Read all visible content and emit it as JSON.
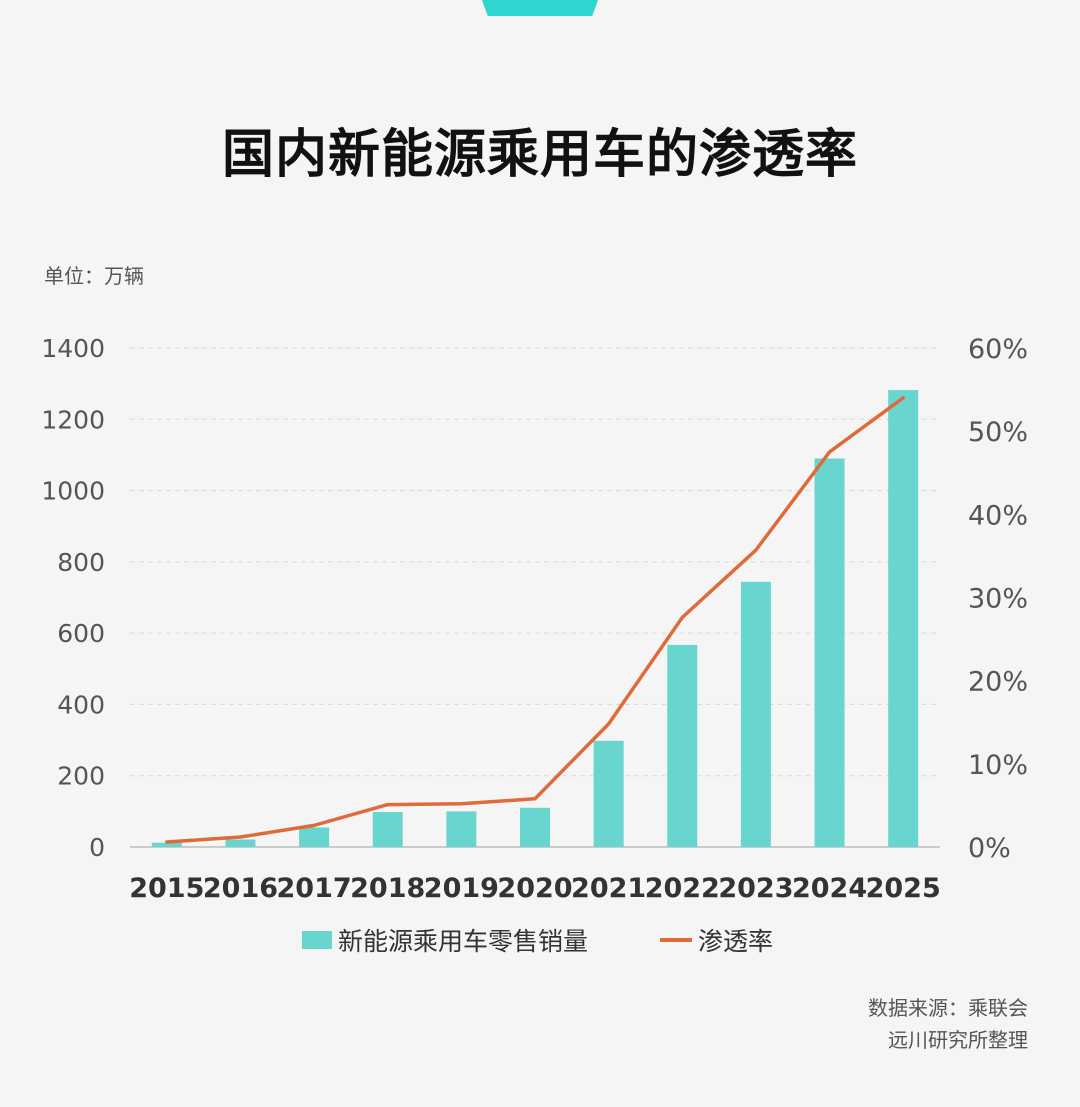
{
  "title": "国内新能源乘用车的渗透率",
  "unit_label": "单位：万辆",
  "source_lines": [
    "数据来源：乘联会",
    "远川研究所整理"
  ],
  "colors": {
    "bar": "#69d5cf",
    "line": "#e06b3a",
    "accent": "#2fd6cf"
  },
  "chart_data": {
    "type": "bar",
    "categories": [
      "2015",
      "2016",
      "2017",
      "2018",
      "2019",
      "2020",
      "2021",
      "2022",
      "2023",
      "2024",
      "2025"
    ],
    "series": [
      {
        "name": "新能源乘用车零售销量",
        "type": "bar",
        "axis": "left",
        "values": [
          12,
          21,
          55,
          98,
          100,
          110,
          298,
          567,
          744,
          1090,
          1282
        ]
      },
      {
        "name": "渗透率",
        "type": "line",
        "axis": "right",
        "values": [
          0.6,
          1.2,
          2.6,
          5.1,
          5.2,
          5.8,
          14.8,
          27.6,
          35.7,
          47.5,
          54.0
        ]
      }
    ],
    "left_axis": {
      "ticks": [
        "0",
        "200",
        "400",
        "600",
        "800",
        "1000",
        "1200",
        "1400"
      ],
      "range": [
        0,
        1400
      ]
    },
    "right_axis": {
      "ticks": [
        "0%",
        "10%",
        "20%",
        "30%",
        "40%",
        "50%",
        "60%"
      ],
      "range": [
        0,
        60
      ]
    },
    "grid": "horizontal-dashed",
    "legend_placement": "bottom-center"
  }
}
